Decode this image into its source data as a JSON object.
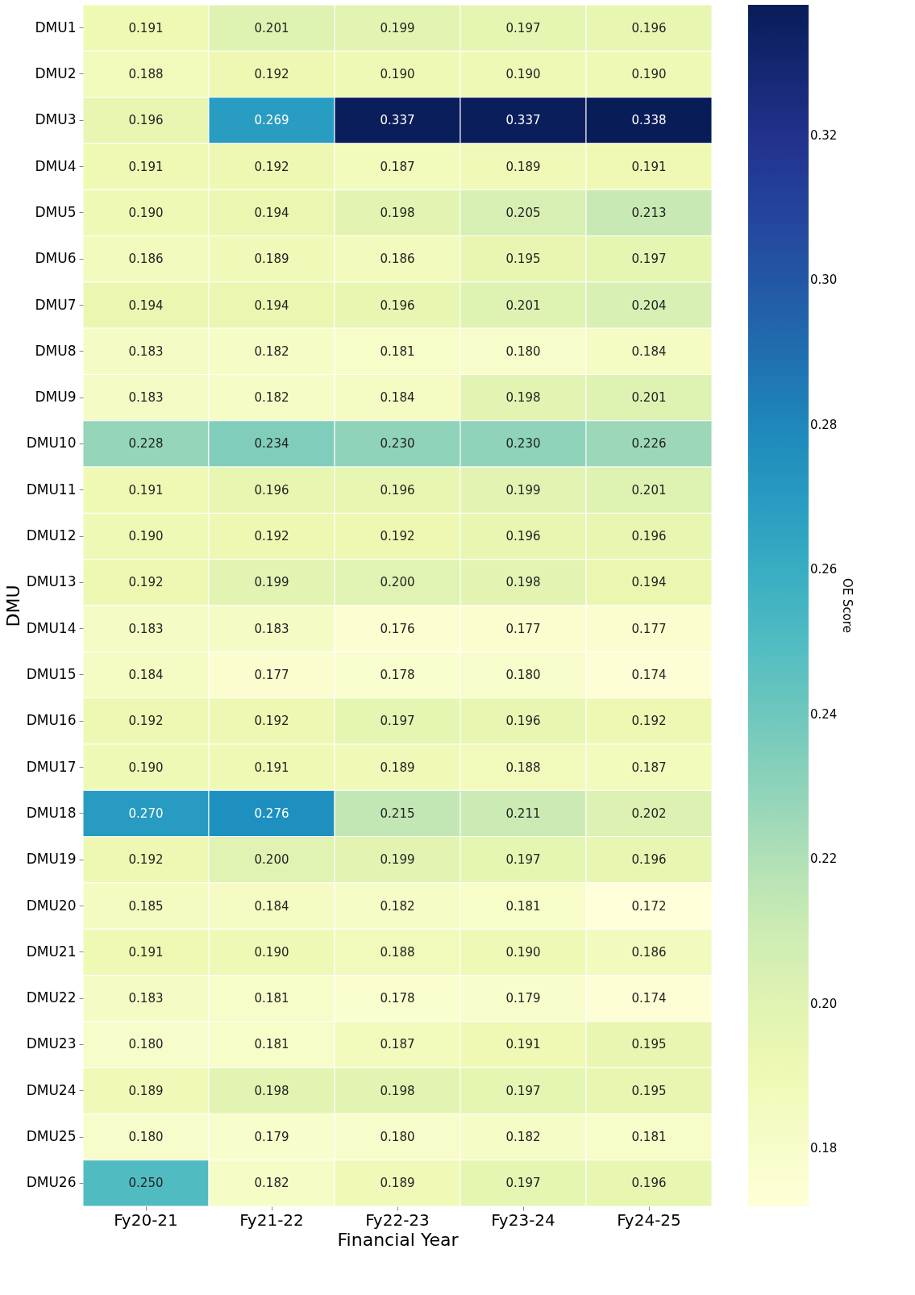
{
  "chart_data": {
    "type": "heatmap",
    "xlabel": "Financial Year",
    "ylabel": "DMU",
    "clabel": "OE Score",
    "categories": [
      "Fy20-21",
      "Fy21-22",
      "Fy22-23",
      "Fy23-24",
      "Fy24-25"
    ],
    "y_categories": [
      "DMU1",
      "DMU2",
      "DMU3",
      "DMU4",
      "DMU5",
      "DMU6",
      "DMU7",
      "DMU8",
      "DMU9",
      "DMU10",
      "DMU11",
      "DMU12",
      "DMU13",
      "DMU14",
      "DMU15",
      "DMU16",
      "DMU17",
      "DMU18",
      "DMU19",
      "DMU20",
      "DMU21",
      "DMU22",
      "DMU23",
      "DMU24",
      "DMU25",
      "DMU26"
    ],
    "cells": [
      [
        0.191,
        0.201,
        0.199,
        0.197,
        0.196
      ],
      [
        0.188,
        0.192,
        0.19,
        0.19,
        0.19
      ],
      [
        0.196,
        0.269,
        0.337,
        0.337,
        0.338
      ],
      [
        0.191,
        0.192,
        0.187,
        0.189,
        0.191
      ],
      [
        0.19,
        0.194,
        0.198,
        0.205,
        0.213
      ],
      [
        0.186,
        0.189,
        0.186,
        0.195,
        0.197
      ],
      [
        0.194,
        0.194,
        0.196,
        0.201,
        0.204
      ],
      [
        0.183,
        0.182,
        0.181,
        0.18,
        0.184
      ],
      [
        0.183,
        0.182,
        0.184,
        0.198,
        0.201
      ],
      [
        0.228,
        0.234,
        0.23,
        0.23,
        0.226
      ],
      [
        0.191,
        0.196,
        0.196,
        0.199,
        0.201
      ],
      [
        0.19,
        0.192,
        0.192,
        0.196,
        0.196
      ],
      [
        0.192,
        0.199,
        0.2,
        0.198,
        0.194
      ],
      [
        0.183,
        0.183,
        0.176,
        0.177,
        0.177
      ],
      [
        0.184,
        0.177,
        0.178,
        0.18,
        0.174
      ],
      [
        0.192,
        0.192,
        0.197,
        0.196,
        0.192
      ],
      [
        0.19,
        0.191,
        0.189,
        0.188,
        0.187
      ],
      [
        0.27,
        0.276,
        0.215,
        0.211,
        0.202
      ],
      [
        0.192,
        0.2,
        0.199,
        0.197,
        0.196
      ],
      [
        0.185,
        0.184,
        0.182,
        0.181,
        0.172
      ],
      [
        0.191,
        0.19,
        0.188,
        0.19,
        0.186
      ],
      [
        0.183,
        0.181,
        0.178,
        0.179,
        0.174
      ],
      [
        0.18,
        0.181,
        0.187,
        0.191,
        0.195
      ],
      [
        0.189,
        0.198,
        0.198,
        0.197,
        0.195
      ],
      [
        0.18,
        0.179,
        0.18,
        0.182,
        0.181
      ],
      [
        0.25,
        0.182,
        0.189,
        0.197,
        0.196
      ]
    ],
    "clim": [
      0.172,
      0.338
    ],
    "cticks": [
      0.18,
      {
        "value": 0.2,
        "label": "0.20"
      },
      0.22,
      0.24,
      0.26,
      0.28,
      {
        "value": 0.3,
        "label": "0.30"
      },
      0.32
    ],
    "cell_labels": [
      [
        "0.191",
        "0.201",
        "0.199",
        "0.197",
        "0.196"
      ],
      [
        "0.188",
        "0.192",
        "0.190",
        "0.190",
        "0.190"
      ],
      [
        "0.196",
        "0.269",
        "0.337",
        "0.337",
        "0.338"
      ],
      [
        "0.191",
        "0.192",
        "0.187",
        "0.189",
        "0.191"
      ],
      [
        "0.190",
        "0.194",
        "0.198",
        "0.205",
        "0.213"
      ],
      [
        "0.186",
        "0.189",
        "0.186",
        "0.195",
        "0.197"
      ],
      [
        "0.194",
        "0.194",
        "0.196",
        "0.201",
        "0.204"
      ],
      [
        "0.183",
        "0.182",
        "0.181",
        "0.180",
        "0.184"
      ],
      [
        "0.183",
        "0.182",
        "0.184",
        "0.198",
        "0.201"
      ],
      [
        "0.228",
        "0.234",
        "0.230",
        "0.230",
        "0.226"
      ],
      [
        "0.191",
        "0.196",
        "0.196",
        "0.199",
        "0.201"
      ],
      [
        "0.190",
        "0.192",
        "0.192",
        "0.196",
        "0.196"
      ],
      [
        "0.192",
        "0.199",
        "0.200",
        "0.198",
        "0.194"
      ],
      [
        "0.183",
        "0.183",
        "0.176",
        "0.177",
        "0.177"
      ],
      [
        "0.184",
        "0.177",
        "0.178",
        "0.180",
        "0.174"
      ],
      [
        "0.192",
        "0.192",
        "0.197",
        "0.196",
        "0.192"
      ],
      [
        "0.190",
        "0.191",
        "0.189",
        "0.188",
        "0.187"
      ],
      [
        "0.270",
        "0.276",
        "0.215",
        "0.211",
        "0.202"
      ],
      [
        "0.192",
        "0.200",
        "0.199",
        "0.197",
        "0.196"
      ],
      [
        "0.185",
        "0.184",
        "0.182",
        "0.181",
        "0.172"
      ],
      [
        "0.191",
        "0.190",
        "0.188",
        "0.190",
        "0.186"
      ],
      [
        "0.183",
        "0.181",
        "0.178",
        "0.179",
        "0.174"
      ],
      [
        "0.180",
        "0.181",
        "0.187",
        "0.191",
        "0.195"
      ],
      [
        "0.189",
        "0.198",
        "0.198",
        "0.197",
        "0.195"
      ],
      [
        "0.180",
        "0.179",
        "0.180",
        "0.182",
        "0.181"
      ],
      [
        "0.250",
        "0.182",
        "0.189",
        "0.197",
        "0.196"
      ]
    ],
    "data_labels": true
  }
}
